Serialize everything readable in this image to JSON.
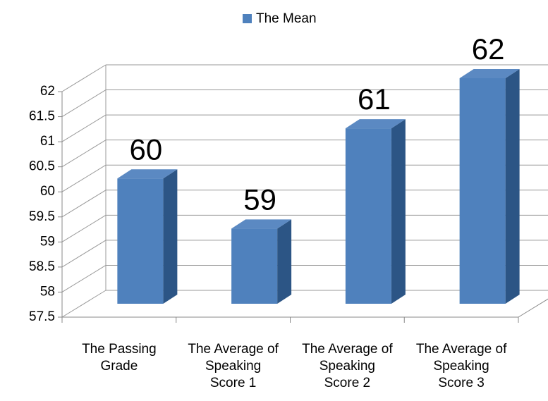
{
  "chart_data": {
    "type": "bar3d",
    "categories": [
      "The Passing Grade",
      "The Average of Speaking Score 1",
      "The Average of Speaking Score 2",
      "The Average of Speaking Score 3"
    ],
    "series": [
      {
        "name": "The Mean",
        "color": "#4f81bd",
        "values": [
          60,
          59,
          61,
          62
        ]
      }
    ],
    "ylim": [
      57.5,
      62
    ],
    "yticks": [
      57.5,
      58,
      58.5,
      59,
      59.5,
      60,
      60.5,
      61,
      61.5,
      62
    ],
    "grid": true,
    "legend": "top"
  }
}
